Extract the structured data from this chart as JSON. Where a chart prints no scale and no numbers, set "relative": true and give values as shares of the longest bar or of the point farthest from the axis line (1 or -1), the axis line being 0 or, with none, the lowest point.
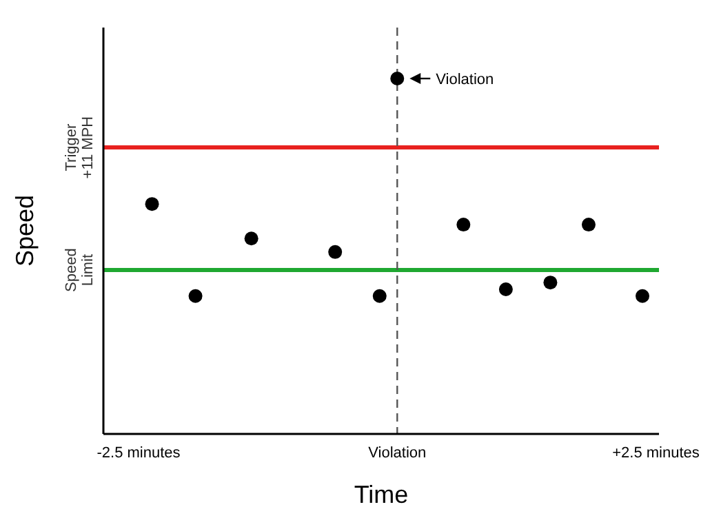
{
  "chart_data": {
    "type": "scatter",
    "relative": true,
    "xlabel": "Time",
    "ylabel": "Speed",
    "x": [
      -2.37,
      -1.95,
      -1.41,
      -0.6,
      -0.17,
      0,
      0.64,
      1.05,
      1.48,
      1.85,
      2.37
    ],
    "series": [
      {
        "color": "#000000",
        "values": [
          0.647,
          0.388,
          0.55,
          0.512,
          0.388,
          1,
          0.589,
          0.407,
          0.426,
          0.589,
          0.388
        ]
      }
    ],
    "xlim": [
      -2.84,
      2.53
    ],
    "xticks": [
      {
        "value": -2.5,
        "label": "-2.5 minutes"
      },
      {
        "value": 0,
        "label": "Violation"
      },
      {
        "value": 2.5,
        "label": "+2.5 minutes"
      }
    ],
    "ref_lines": [
      {
        "axis": "y",
        "value": 0.806,
        "label": "Trigger +11 MPH",
        "color": "#e8211f"
      },
      {
        "axis": "y",
        "value": 0.461,
        "label": "Speed Limit",
        "color": "#1fa831"
      },
      {
        "axis": "x",
        "value": 0,
        "color": "#555555",
        "line_style": "dashed"
      }
    ],
    "annotations": [
      {
        "text": "Violation",
        "x": 0,
        "y": 1
      }
    ],
    "marker": "circle",
    "grid": false
  }
}
